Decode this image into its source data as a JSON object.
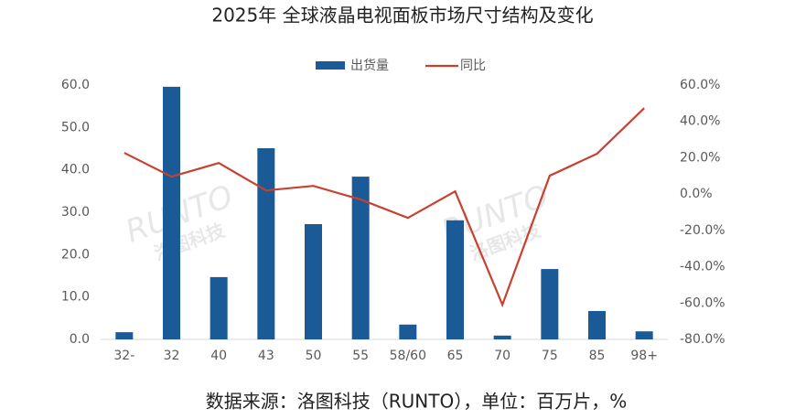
{
  "chart_data": {
    "type": "bar_line",
    "title": "2025年 全球液晶电视面板市场尺寸结构及变化",
    "source": "数据来源：洛图科技（RUNTO），单位：百万片，%",
    "annotations": [
      "RUNTO",
      "洛图科技"
    ],
    "categories": [
      "32-",
      "32",
      "40",
      "43",
      "50",
      "55",
      "58/60",
      "65",
      "70",
      "75",
      "85",
      "98+"
    ],
    "series": [
      {
        "name": "出货量",
        "type": "bar",
        "color": "#1a5a96",
        "values": [
          1.7,
          59.6,
          14.7,
          45.1,
          27.2,
          38.4,
          3.5,
          28.1,
          0.9,
          16.6,
          6.7,
          1.9
        ]
      },
      {
        "name": "同比",
        "type": "line",
        "axis": "y2",
        "color": "#c8412f",
        "values": [
          22.7,
          9.6,
          17.1,
          2.0,
          4.5,
          -3.0,
          -13.1,
          1.5,
          -60.9,
          10.1,
          22.2,
          47.3
        ]
      }
    ],
    "ylim": [
      0,
      60
    ],
    "yticks": [
      {
        "value": 0,
        "label": "0.0"
      },
      {
        "value": 10,
        "label": "10.0"
      },
      {
        "value": 20,
        "label": "20.0"
      },
      {
        "value": 30,
        "label": "30.0"
      },
      {
        "value": 40,
        "label": "40.0"
      },
      {
        "value": 50,
        "label": "50.0"
      },
      {
        "value": 60,
        "label": "60.0"
      }
    ],
    "y2lim": [
      -80,
      60
    ],
    "y2ticks": [
      {
        "value": -80,
        "label": "-80.0%"
      },
      {
        "value": -60,
        "label": "-60.0%"
      },
      {
        "value": -40,
        "label": "-40.0%"
      },
      {
        "value": -20,
        "label": "-20.0%"
      },
      {
        "value": 0,
        "label": "0.0%"
      },
      {
        "value": 20,
        "label": "20.0%"
      },
      {
        "value": 40,
        "label": "40.0%"
      },
      {
        "value": 60,
        "label": "60.0%"
      }
    ],
    "legend": "top",
    "grid": false
  }
}
